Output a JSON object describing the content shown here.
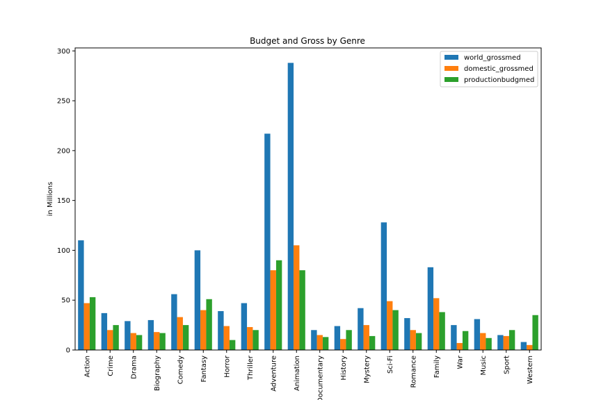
{
  "chart_data": {
    "type": "bar",
    "title": "Budget and Gross by Genre",
    "xlabel": "",
    "ylabel": "in Millions",
    "ylim": [
      0,
      303
    ],
    "yticks": [
      0,
      50,
      100,
      150,
      200,
      250,
      300
    ],
    "grid": false,
    "legend_position": "top-right",
    "categories": [
      "Action",
      "Crime",
      "Drama",
      "Biography",
      "Comedy",
      "Fantasy",
      "Horror",
      "Thriller",
      "Adventure",
      "Animation",
      "Documentary",
      "History",
      "Mystery",
      "Sci-Fi",
      "Romance",
      "Family",
      "War",
      "Music",
      "Sport",
      "Western"
    ],
    "series": [
      {
        "name": "world_grossmed",
        "color": "#1f77b4",
        "values": [
          110,
          37,
          29,
          30,
          56,
          100,
          39,
          47,
          217,
          288,
          20,
          24,
          42,
          128,
          32,
          83,
          25,
          31,
          15,
          8
        ]
      },
      {
        "name": "domestic_grossmed",
        "color": "#ff7f0e",
        "values": [
          47,
          20,
          17,
          18,
          33,
          40,
          24,
          23,
          80,
          105,
          15,
          11,
          25,
          49,
          20,
          52,
          7,
          17,
          14,
          5
        ]
      },
      {
        "name": "productionbudgmed",
        "color": "#2ca02c",
        "values": [
          53,
          25,
          15,
          17,
          25,
          51,
          10,
          20,
          90,
          80,
          13,
          20,
          14,
          40,
          17,
          38,
          19,
          12,
          20,
          35
        ]
      }
    ]
  }
}
